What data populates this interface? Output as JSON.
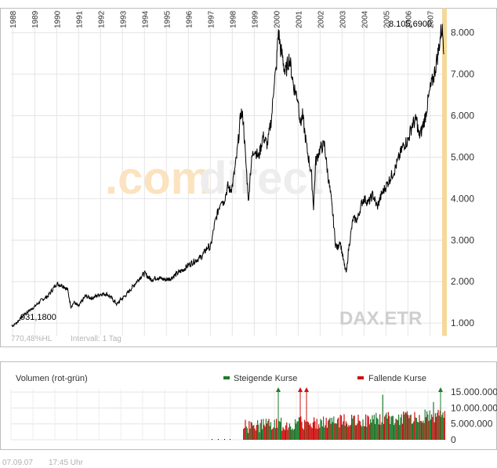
{
  "chart_data": [
    {
      "type": "line",
      "title": "",
      "instrument": "DAX.ETR",
      "watermark": ".comdirect",
      "info_left": "770,48%HL",
      "info_interval": "Intervall: 1 Tag",
      "x_tick_labels": [
        "1988",
        "1989",
        "1990",
        "1991",
        "1992",
        "1993",
        "1994",
        "1995",
        "1996",
        "1997",
        "1998",
        "1999",
        "2000",
        "2001",
        "2002",
        "2003",
        "2004",
        "2005",
        "2006",
        "2007"
      ],
      "x_range": [
        1987.92,
        2007.7
      ],
      "y_tick_labels": [
        "1.000",
        "2.000",
        "3.000",
        "4.000",
        "5.000",
        "6.000",
        "7.000",
        "8.000"
      ],
      "y_ticks": [
        1000,
        2000,
        3000,
        4000,
        5000,
        6000,
        7000,
        8000
      ],
      "ylim": [
        700,
        8600
      ],
      "grid": true,
      "label_low": "931,1800",
      "label_high": "8.105,6900",
      "series": [
        {
          "x": [
            1987.95,
            1988.0,
            1988.2,
            1988.5,
            1988.8,
            1989.0,
            1989.3,
            1989.6,
            1989.8,
            1990.0,
            1990.3,
            1990.5,
            1990.65,
            1990.8,
            1991.0,
            1991.3,
            1991.6,
            1992.0,
            1992.3,
            1992.5,
            1992.75,
            1992.9,
            1993.0,
            1993.2,
            1993.5,
            1993.8,
            1994.0,
            1994.3,
            1994.6,
            1994.9,
            1995.0,
            1995.2,
            1995.5,
            1995.8,
            1996.0,
            1996.3,
            1996.6,
            1996.9,
            1997.0,
            1997.2,
            1997.4,
            1997.5,
            1997.6,
            1997.8,
            1997.9,
            1998.0,
            1998.2,
            1998.4,
            1998.5,
            1998.6,
            1998.75,
            1998.8,
            1998.9,
            1999.0,
            1999.2,
            1999.4,
            1999.6,
            1999.8,
            1999.9,
            2000.0,
            2000.1,
            2000.2,
            2000.3,
            2000.4,
            2000.6,
            2000.8,
            2001.0,
            2001.1,
            2001.2,
            2001.4,
            2001.6,
            2001.7,
            2001.8,
            2002.0,
            2002.2,
            2002.3,
            2002.5,
            2002.6,
            2002.7,
            2002.8,
            2002.9,
            2003.0,
            2003.1,
            2003.2,
            2003.3,
            2003.5,
            2003.7,
            2003.9,
            2004.0,
            2004.2,
            2004.4,
            2004.6,
            2004.8,
            2005.0,
            2005.2,
            2005.4,
            2005.6,
            2005.8,
            2006.0,
            2006.2,
            2006.4,
            2006.5,
            2006.6,
            2006.8,
            2007.0,
            2007.2,
            2007.4,
            2007.5,
            2007.55,
            2007.6,
            2007.65
          ],
          "y": [
            960,
            931,
            1020,
            1200,
            1320,
            1400,
            1550,
            1650,
            1800,
            1950,
            1900,
            1800,
            1400,
            1500,
            1400,
            1650,
            1600,
            1700,
            1700,
            1600,
            1450,
            1560,
            1600,
            1700,
            1900,
            2100,
            2200,
            2050,
            2100,
            2050,
            2050,
            2080,
            2200,
            2300,
            2400,
            2500,
            2600,
            2850,
            2800,
            3400,
            3800,
            4000,
            3900,
            4300,
            4200,
            4300,
            5000,
            6100,
            5900,
            5000,
            3900,
            4500,
            5000,
            5200,
            5000,
            5500,
            5300,
            6000,
            6800,
            7100,
            8050,
            7600,
            7400,
            7000,
            7400,
            6700,
            6400,
            5800,
            6000,
            5200,
            4600,
            3800,
            4900,
            5200,
            5300,
            4800,
            4000,
            3500,
            2900,
            2800,
            3000,
            2700,
            2400,
            2200,
            2800,
            3500,
            3500,
            3900,
            4000,
            3900,
            4100,
            3800,
            4100,
            4300,
            4500,
            4700,
            5000,
            5300,
            5400,
            5800,
            5900,
            5500,
            5600,
            6000,
            6600,
            7000,
            7600,
            8000,
            8105,
            7900,
            7500
          ]
        }
      ]
    },
    {
      "type": "bar",
      "title": "Volumen (rot-grün)",
      "legend_up": "Steigende Kurse",
      "legend_down": "Fallende Kurse",
      "color_up": "#1f7a2e",
      "color_down": "#d01010",
      "y_tick_labels": [
        "0",
        "5.000.000",
        "10.000.000",
        "15.000.000"
      ],
      "y_ticks": [
        0,
        5000000,
        10000000,
        15000000
      ],
      "ylim": [
        0,
        16000000
      ]
    }
  ],
  "footer": {
    "date": "07.09.07",
    "time": "17:45 Uhr"
  },
  "colors": {
    "highlight_band": "#f5d99a",
    "line": "#000000",
    "grid": "#e4e4e4",
    "watermark_orange": "#fbe3c0",
    "watermark_gray": "#eeeeee"
  }
}
